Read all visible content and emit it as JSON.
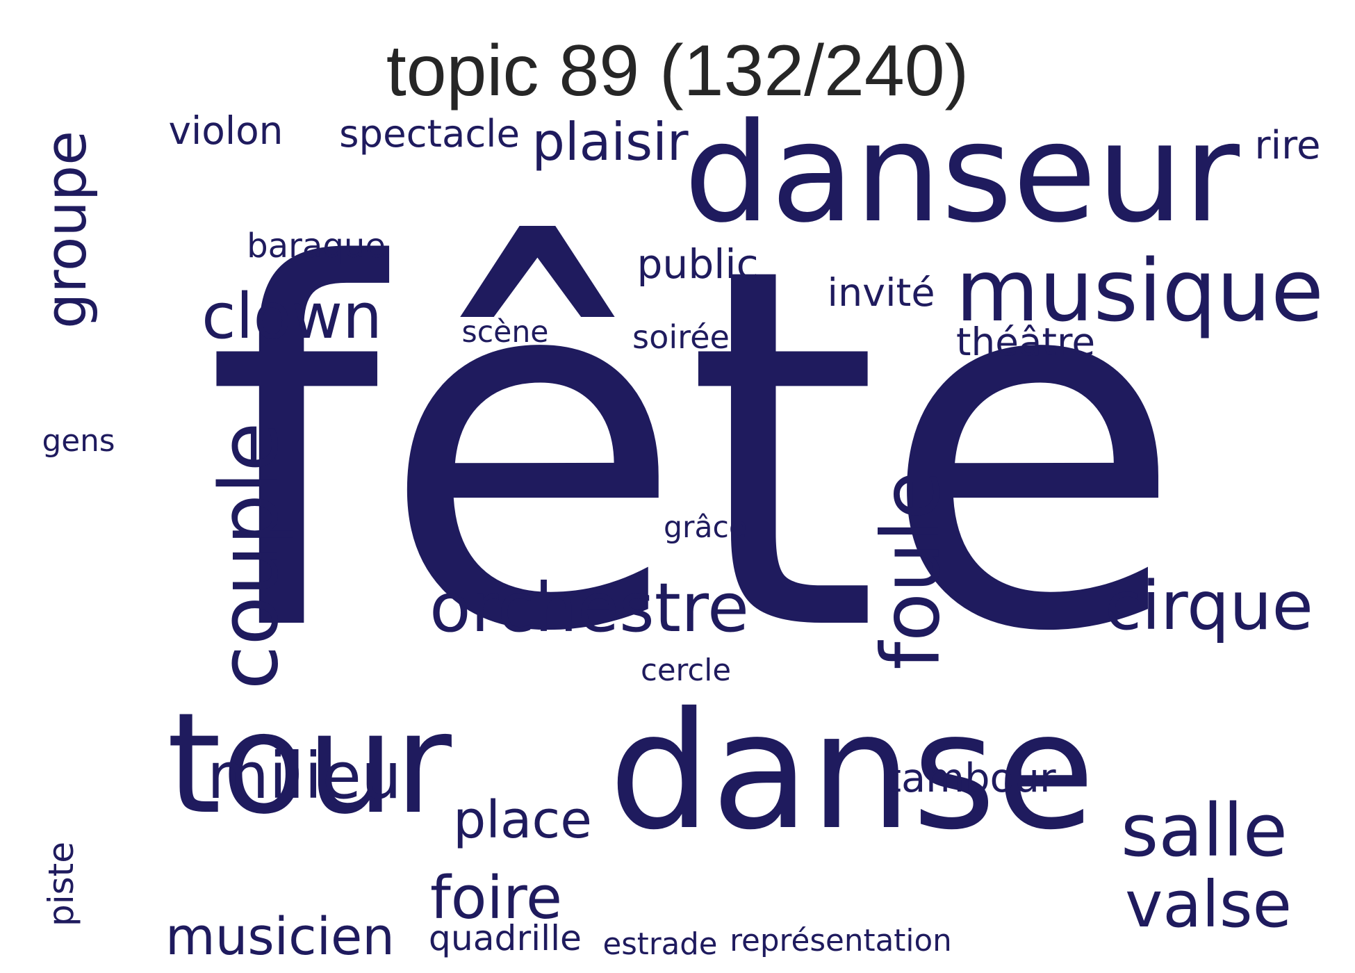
{
  "title": "topic 89 (132/240)",
  "color": "#1f1b5e",
  "words": [
    {
      "text": "fête",
      "orientation": "horizontal"
    },
    {
      "text": "danse",
      "orientation": "horizontal"
    },
    {
      "text": "danseur",
      "orientation": "horizontal"
    },
    {
      "text": "tour",
      "orientation": "horizontal"
    },
    {
      "text": "musique",
      "orientation": "horizontal"
    },
    {
      "text": "couple",
      "orientation": "vertical"
    },
    {
      "text": "orchestre",
      "orientation": "horizontal"
    },
    {
      "text": "foule",
      "orientation": "vertical"
    },
    {
      "text": "cirque",
      "orientation": "horizontal"
    },
    {
      "text": "salle",
      "orientation": "horizontal"
    },
    {
      "text": "valse",
      "orientation": "horizontal"
    },
    {
      "text": "clown",
      "orientation": "horizontal"
    },
    {
      "text": "milieu",
      "orientation": "horizontal"
    },
    {
      "text": "groupe",
      "orientation": "vertical"
    },
    {
      "text": "plaisir",
      "orientation": "horizontal"
    },
    {
      "text": "musicien",
      "orientation": "horizontal"
    },
    {
      "text": "place",
      "orientation": "horizontal"
    },
    {
      "text": "foire",
      "orientation": "horizontal"
    },
    {
      "text": "spectacle",
      "orientation": "horizontal"
    },
    {
      "text": "théâtre",
      "orientation": "horizontal"
    },
    {
      "text": "tambour",
      "orientation": "horizontal"
    },
    {
      "text": "public",
      "orientation": "horizontal"
    },
    {
      "text": "invité",
      "orientation": "horizontal"
    },
    {
      "text": "quadrille",
      "orientation": "horizontal"
    },
    {
      "text": "représentation",
      "orientation": "horizontal"
    },
    {
      "text": "violon",
      "orientation": "horizontal"
    },
    {
      "text": "baraque",
      "orientation": "horizontal"
    },
    {
      "text": "rire",
      "orientation": "horizontal"
    },
    {
      "text": "piste",
      "orientation": "vertical"
    },
    {
      "text": "soirée",
      "orientation": "horizontal"
    },
    {
      "text": "scène",
      "orientation": "horizontal"
    },
    {
      "text": "grâce",
      "orientation": "horizontal"
    },
    {
      "text": "cercle",
      "orientation": "horizontal"
    },
    {
      "text": "estrade",
      "orientation": "horizontal"
    },
    {
      "text": "gens",
      "orientation": "horizontal"
    }
  ]
}
